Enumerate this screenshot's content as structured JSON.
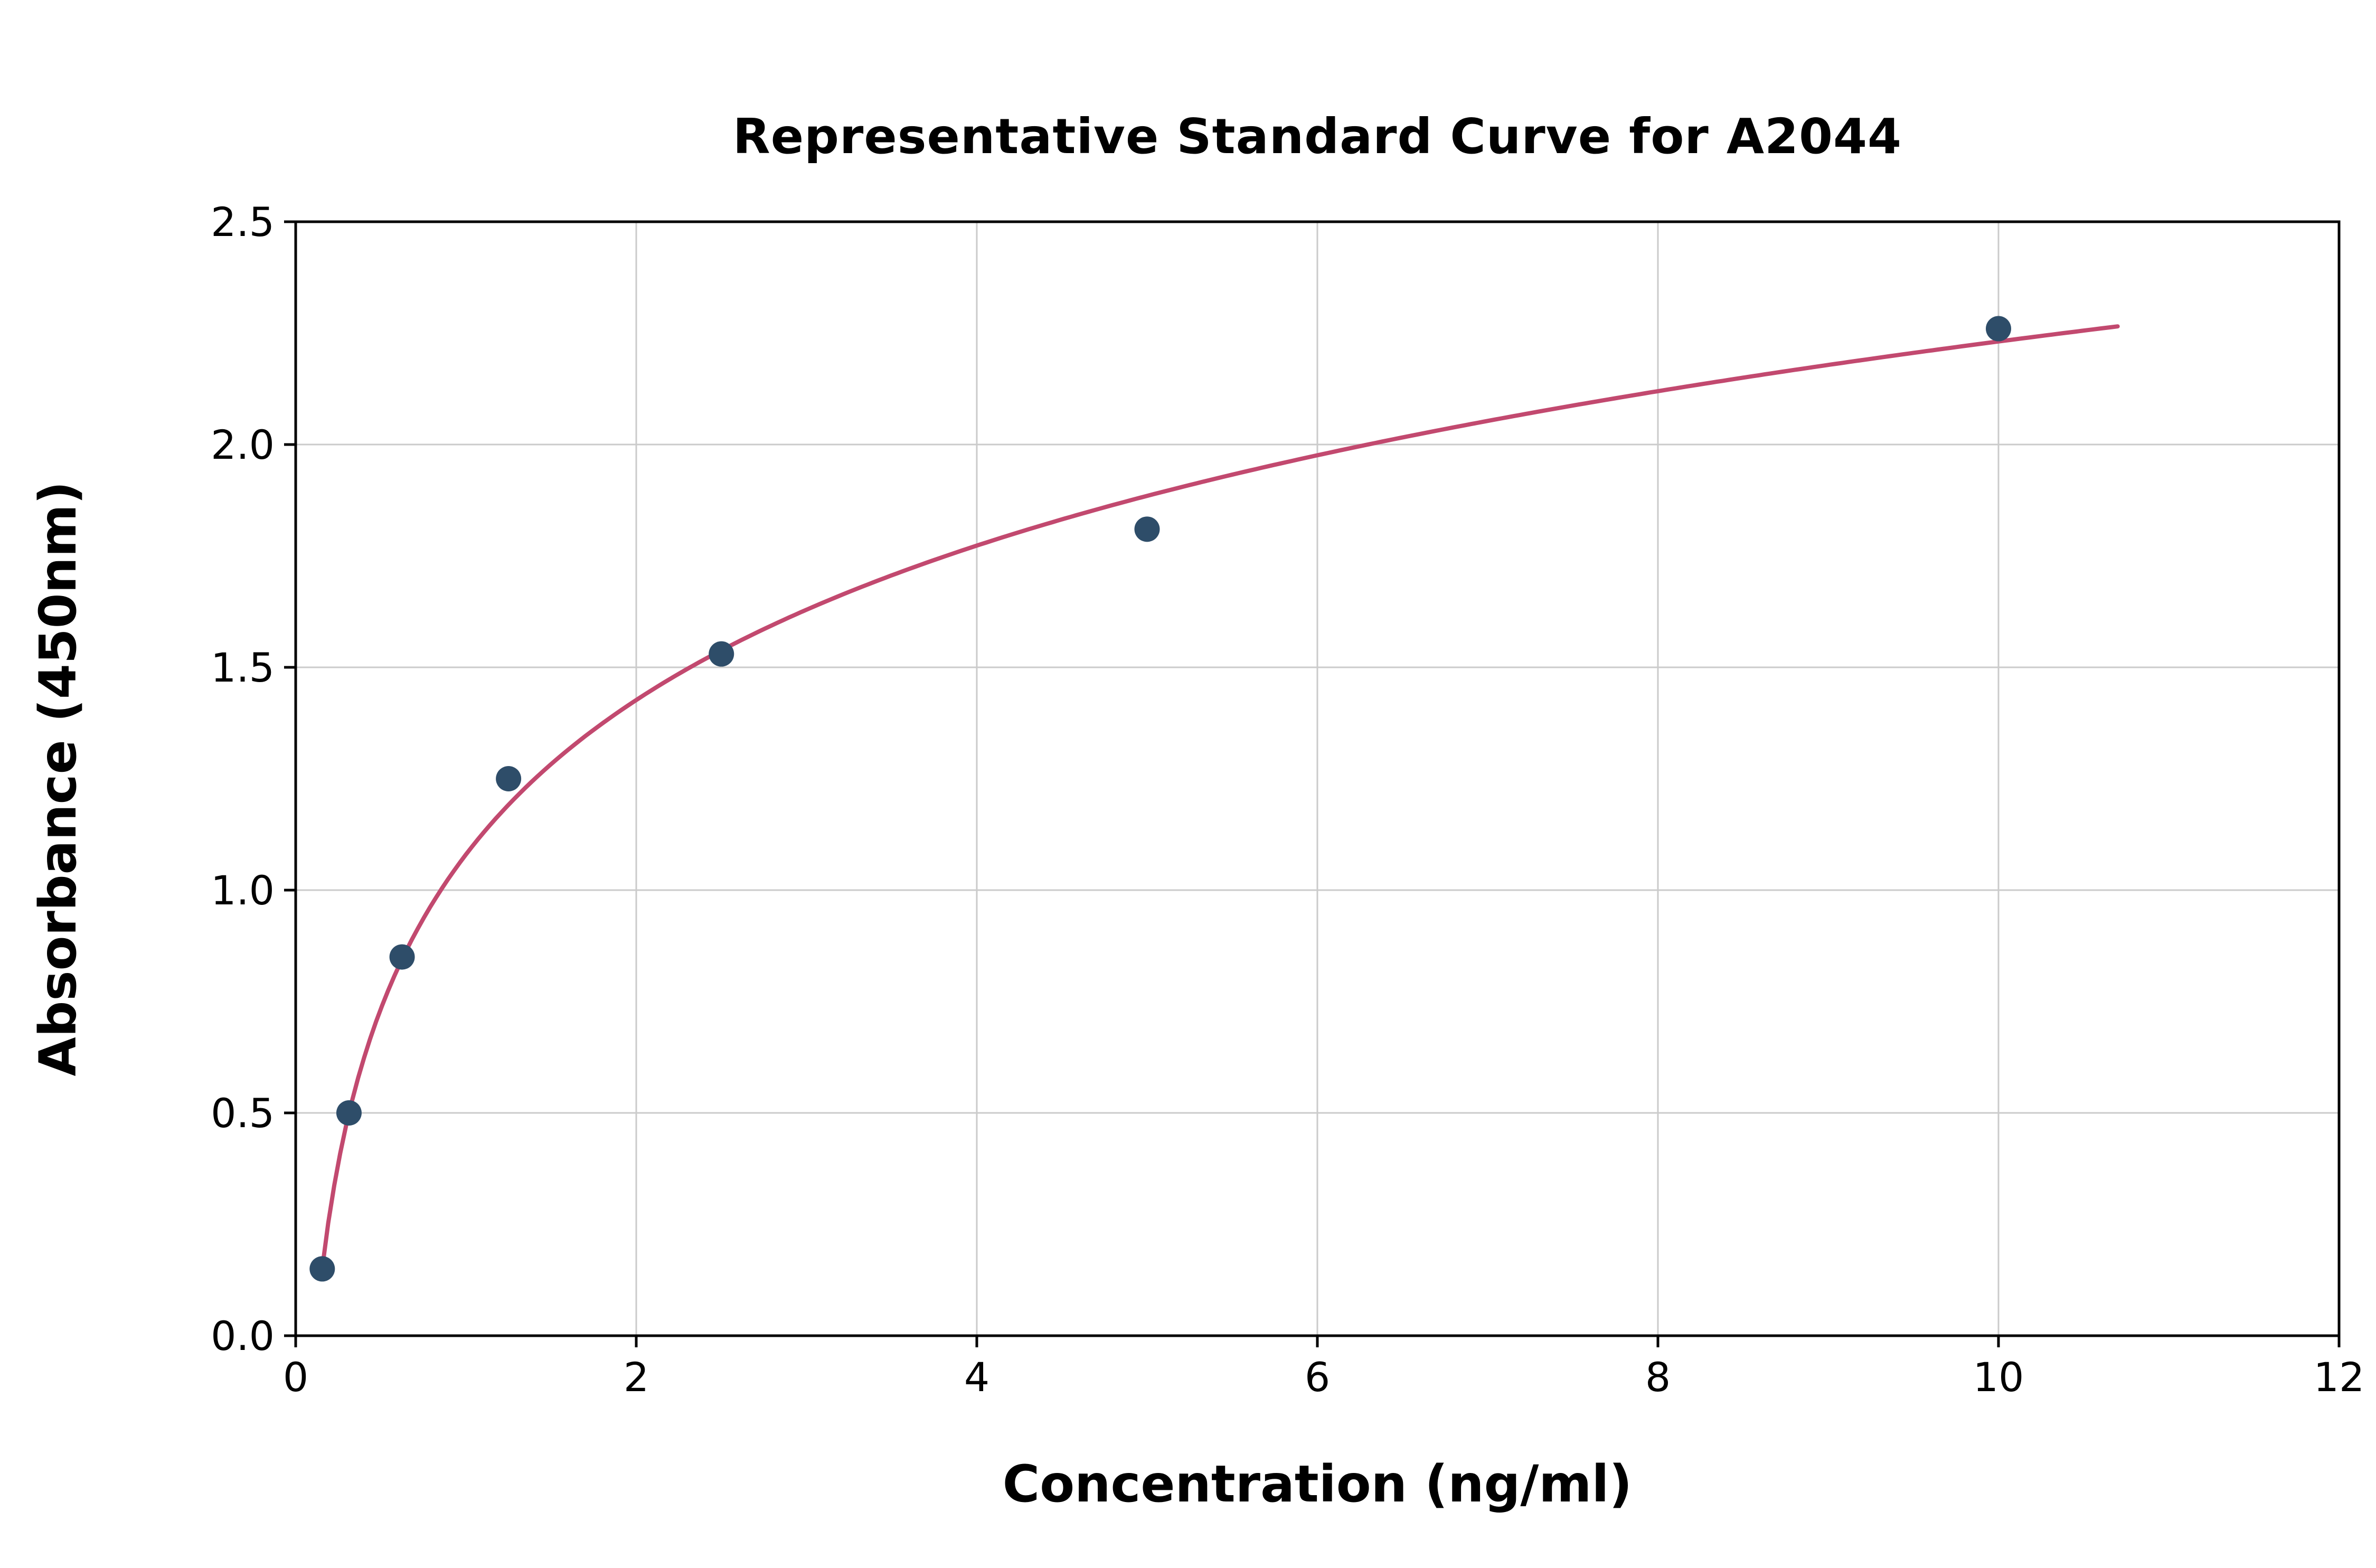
{
  "chart_data": {
    "type": "scatter",
    "title": "Representative Standard Curve for A2044",
    "xlabel": "Concentration (ng/ml)",
    "ylabel": "Absorbance (450nm)",
    "xlim": [
      0,
      12
    ],
    "ylim": [
      0,
      2.5
    ],
    "grid": true,
    "legend": "none",
    "x_ticks": [
      {
        "value": 0,
        "label": "0"
      },
      {
        "value": 2,
        "label": "2"
      },
      {
        "value": 4,
        "label": "4"
      },
      {
        "value": 6,
        "label": "6"
      },
      {
        "value": 8,
        "label": "8"
      },
      {
        "value": 10,
        "label": "10"
      },
      {
        "value": 12,
        "label": "12"
      }
    ],
    "y_ticks": [
      {
        "value": 0.0,
        "label": "0.0"
      },
      {
        "value": 0.5,
        "label": "0.5"
      },
      {
        "value": 1.0,
        "label": "1.0"
      },
      {
        "value": 1.5,
        "label": "1.5"
      },
      {
        "value": 2.0,
        "label": "2.0"
      },
      {
        "value": 2.5,
        "label": "2.5"
      }
    ],
    "points": [
      {
        "x": 0.156,
        "y": 0.15
      },
      {
        "x": 0.313,
        "y": 0.5
      },
      {
        "x": 0.625,
        "y": 0.85
      },
      {
        "x": 1.25,
        "y": 1.25
      },
      {
        "x": 2.5,
        "y": 1.53
      },
      {
        "x": 5.0,
        "y": 1.81
      },
      {
        "x": 10.0,
        "y": 2.26
      }
    ],
    "fit_curve": {
      "model": "logarithmic",
      "equation": "y = a*ln(x) + b",
      "a": 0.5,
      "b": 1.08,
      "x_start": 0.156,
      "x_end": 10.7
    },
    "colors": {
      "point": "#2e4d69",
      "curve": "#c2496f",
      "grid": "#cbcbcb",
      "axis": "#000000",
      "background": "#ffffff"
    }
  }
}
